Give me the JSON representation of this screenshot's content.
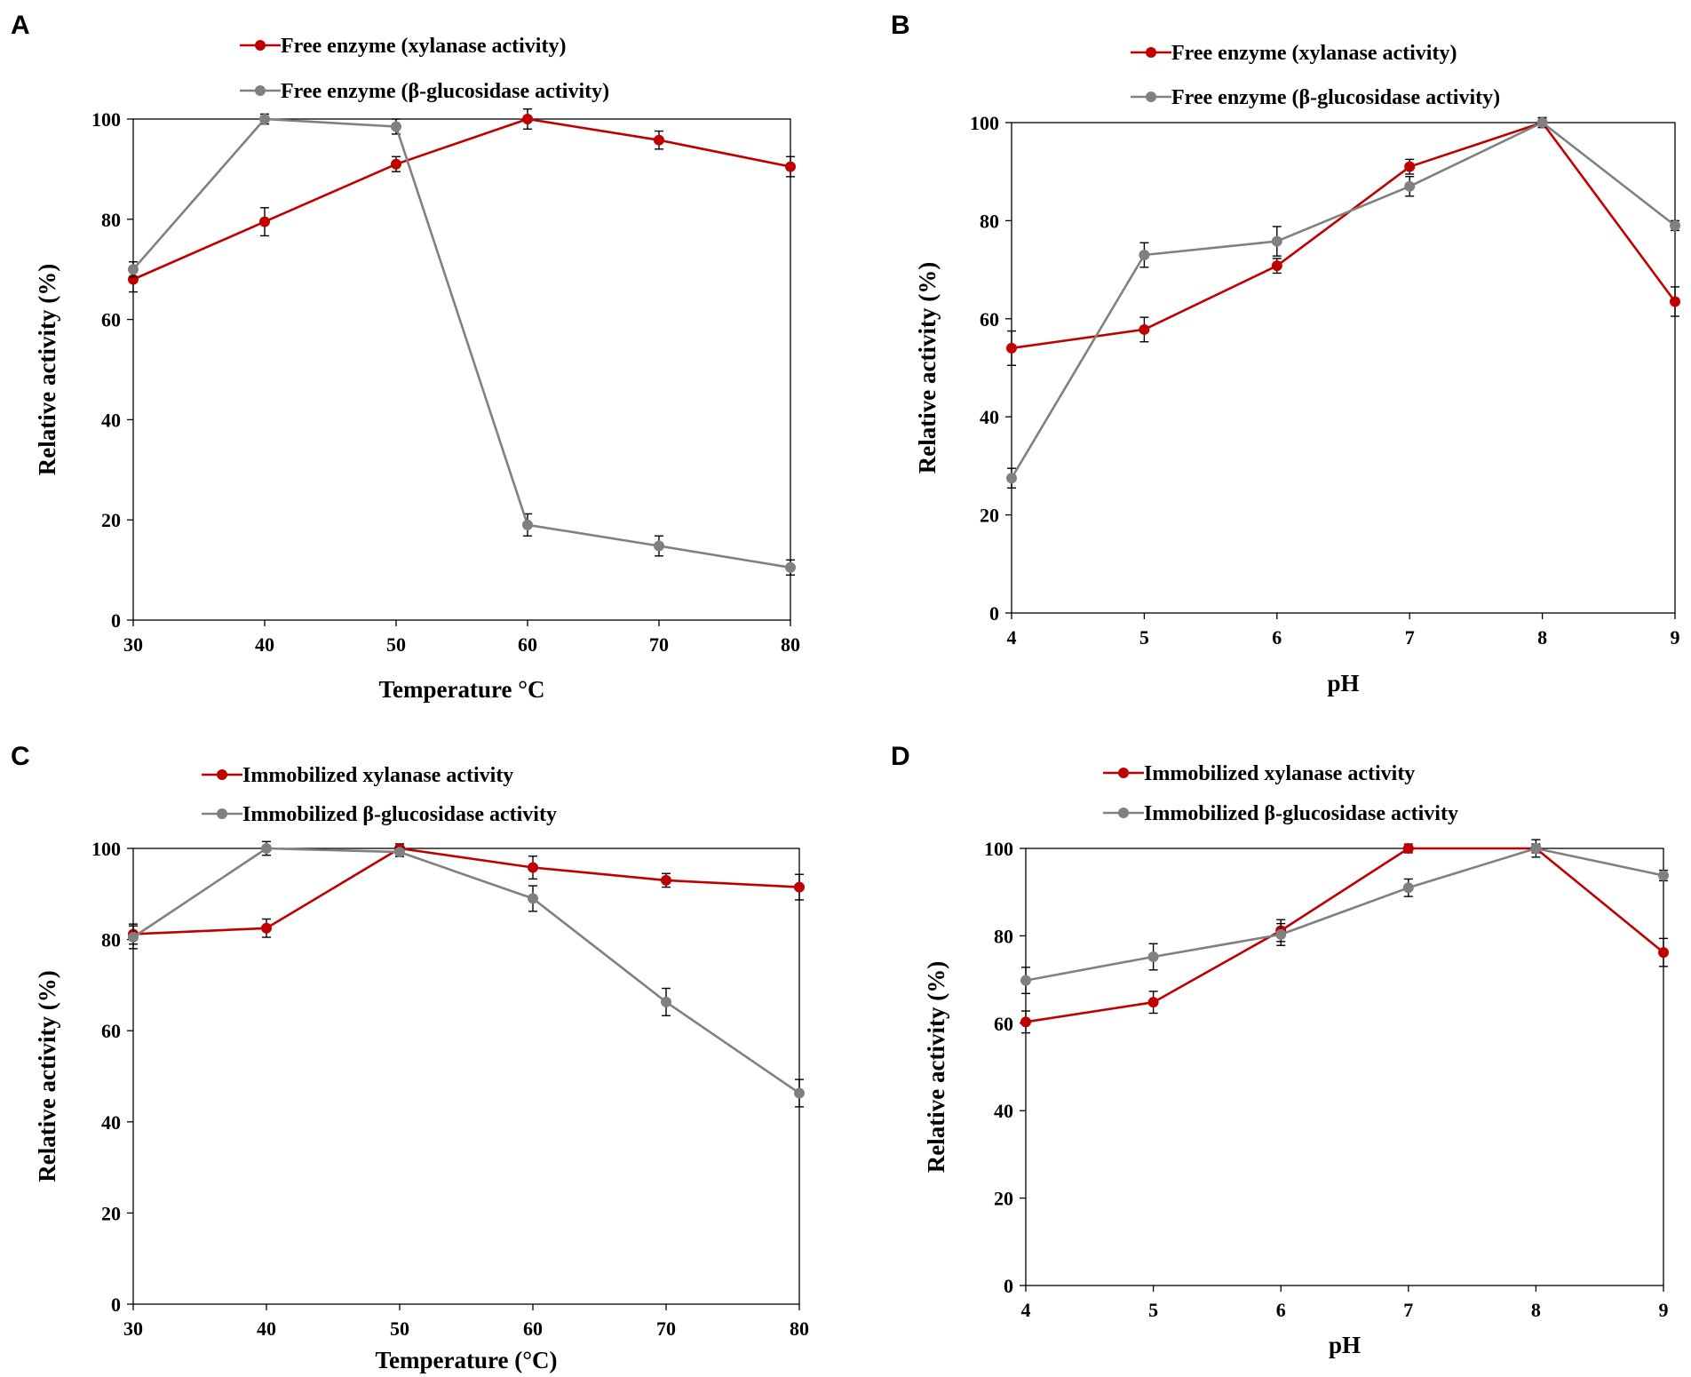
{
  "colors": {
    "xylanase": "#c00000",
    "glucosidase": "#808080",
    "axis": "#000000"
  },
  "chart_data": [
    {
      "panel": "A",
      "type": "line",
      "xlabel": "Temperature °C",
      "ylabel": "Relative activity  (%)",
      "x": [
        30,
        40,
        50,
        60,
        70,
        80
      ],
      "xlim": [
        30,
        80
      ],
      "ylim": [
        0,
        100
      ],
      "xticks": [
        30,
        40,
        50,
        60,
        70,
        80
      ],
      "yticks": [
        0,
        20,
        40,
        60,
        80,
        100
      ],
      "legend_position": "top",
      "series": [
        {
          "name": "Free enzyme (xylanase activity)",
          "color_key": "xylanase",
          "values": [
            68,
            79.5,
            91,
            100,
            95.8,
            90.5
          ],
          "errors": [
            2.5,
            2.8,
            1.5,
            2,
            1.8,
            2
          ]
        },
        {
          "name": "Free enzyme (β-glucosidase activity)",
          "color_key": "glucosidase",
          "values": [
            70,
            100,
            98.5,
            19,
            14.8,
            10.5
          ],
          "errors": [
            1.5,
            1,
            1.5,
            2.2,
            2,
            1.5
          ]
        }
      ]
    },
    {
      "panel": "B",
      "type": "line",
      "xlabel": "pH",
      "ylabel": "Relative activity (%)",
      "x": [
        4,
        5,
        6,
        7,
        8,
        9
      ],
      "xlim": [
        4,
        9
      ],
      "ylim": [
        0,
        100
      ],
      "xticks": [
        4,
        5,
        6,
        7,
        8,
        9
      ],
      "yticks": [
        0,
        20,
        40,
        60,
        80,
        100
      ],
      "legend_position": "top",
      "series": [
        {
          "name": "Free enzyme (xylanase activity)",
          "color_key": "xylanase",
          "values": [
            54,
            57.8,
            70.8,
            91,
            100,
            63.5
          ],
          "errors": [
            3.5,
            2.5,
            1.5,
            1.5,
            1,
            3
          ]
        },
        {
          "name": "Free enzyme (β-glucosidase activity)",
          "color_key": "glucosidase",
          "values": [
            27.5,
            73,
            75.8,
            87,
            100,
            79
          ],
          "errors": [
            2,
            2.5,
            3,
            2,
            1,
            1
          ]
        }
      ]
    },
    {
      "panel": "C",
      "type": "line",
      "xlabel": "Temperature (°C)",
      "ylabel": "Relative activity (%)",
      "x": [
        30,
        40,
        50,
        60,
        70,
        80
      ],
      "xlim": [
        30,
        80
      ],
      "ylim": [
        0,
        100
      ],
      "xticks": [
        30,
        40,
        50,
        60,
        70,
        80
      ],
      "yticks": [
        0,
        20,
        40,
        60,
        80,
        100
      ],
      "legend_position": "top",
      "series": [
        {
          "name": "Immobilized xylanase activity",
          "color_key": "xylanase",
          "values": [
            81.2,
            82.5,
            100,
            95.8,
            93,
            91.5
          ],
          "errors": [
            2.2,
            2,
            1,
            2.5,
            1.5,
            2.8
          ]
        },
        {
          "name": "Immobilized β-glucosidase activity",
          "color_key": "glucosidase",
          "values": [
            80.5,
            100,
            99.2,
            89,
            66.3,
            46.3
          ],
          "errors": [
            2.5,
            1.5,
            1,
            2.8,
            3,
            3
          ]
        }
      ]
    },
    {
      "panel": "D",
      "type": "line",
      "xlabel": "pH",
      "ylabel": "Relative activity (%)",
      "x": [
        4,
        5,
        6,
        7,
        8,
        9
      ],
      "xlim": [
        4,
        9
      ],
      "ylim": [
        0,
        100
      ],
      "xticks": [
        4,
        5,
        6,
        7,
        8,
        9
      ],
      "yticks": [
        0,
        20,
        40,
        60,
        80,
        100
      ],
      "legend_position": "top",
      "series": [
        {
          "name": "Immobilized xylanase activity",
          "color_key": "xylanase",
          "values": [
            60.3,
            64.8,
            81.2,
            100,
            100,
            76.2
          ],
          "errors": [
            2.5,
            2.5,
            2.5,
            1,
            1,
            3.2
          ]
        },
        {
          "name": "Immobilized β-glucosidase activity",
          "color_key": "glucosidase",
          "values": [
            69.8,
            75.2,
            80.3,
            91,
            100,
            93.8
          ],
          "errors": [
            3,
            3,
            2.5,
            2,
            2,
            1.2
          ]
        }
      ]
    }
  ]
}
